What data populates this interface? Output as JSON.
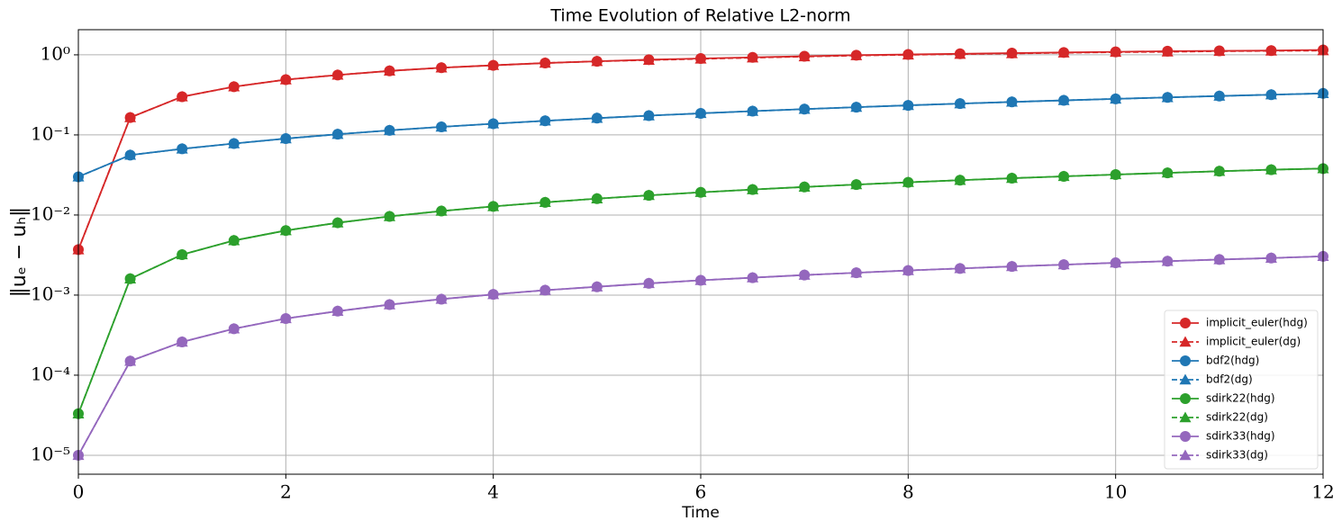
{
  "chart_data": {
    "type": "line",
    "title": "Time Evolution of Relative L2-norm",
    "xlabel": "Time",
    "ylabel": "‖uₑ − uₕ‖",
    "x": [
      0,
      0.5,
      1,
      1.5,
      2,
      2.5,
      3,
      3.5,
      4,
      4.5,
      5,
      5.5,
      6,
      6.5,
      7,
      7.5,
      8,
      8.5,
      9,
      9.5,
      10,
      10.5,
      11,
      11.5,
      12
    ],
    "series": [
      {
        "name": "implicit_euler(hdg)",
        "color": "#d62728",
        "linestyle": "solid",
        "marker": "circle",
        "values": [
          0.0037,
          0.165,
          0.3,
          0.4,
          0.49,
          0.56,
          0.63,
          0.69,
          0.74,
          0.79,
          0.83,
          0.87,
          0.9,
          0.93,
          0.96,
          0.99,
          1.01,
          1.03,
          1.05,
          1.07,
          1.09,
          1.11,
          1.12,
          1.13,
          1.15
        ]
      },
      {
        "name": "implicit_euler(dg)",
        "color": "#d62728",
        "linestyle": "dashed",
        "marker": "triangle",
        "values": [
          0.0037,
          0.165,
          0.3,
          0.4,
          0.49,
          0.56,
          0.63,
          0.69,
          0.74,
          0.79,
          0.83,
          0.86,
          0.89,
          0.92,
          0.95,
          0.98,
          1.0,
          1.02,
          1.04,
          1.06,
          1.08,
          1.09,
          1.11,
          1.12,
          1.13
        ]
      },
      {
        "name": "bdf2(hdg)",
        "color": "#1f77b4",
        "linestyle": "solid",
        "marker": "circle",
        "values": [
          0.03,
          0.056,
          0.067,
          0.078,
          0.09,
          0.102,
          0.114,
          0.126,
          0.138,
          0.15,
          0.162,
          0.174,
          0.186,
          0.198,
          0.21,
          0.222,
          0.234,
          0.246,
          0.258,
          0.27,
          0.282,
          0.294,
          0.306,
          0.318,
          0.33
        ]
      },
      {
        "name": "bdf2(dg)",
        "color": "#1f77b4",
        "linestyle": "dashed",
        "marker": "triangle",
        "values": [
          0.03,
          0.056,
          0.067,
          0.078,
          0.09,
          0.102,
          0.114,
          0.126,
          0.138,
          0.15,
          0.162,
          0.174,
          0.186,
          0.198,
          0.21,
          0.222,
          0.234,
          0.246,
          0.258,
          0.27,
          0.282,
          0.294,
          0.306,
          0.318,
          0.33
        ]
      },
      {
        "name": "sdirk22(hdg)",
        "color": "#2ca02c",
        "linestyle": "solid",
        "marker": "circle",
        "values": [
          3.3e-05,
          0.0016,
          0.0032,
          0.0048,
          0.0064,
          0.008,
          0.0096,
          0.0112,
          0.0128,
          0.0144,
          0.016,
          0.0176,
          0.0192,
          0.0208,
          0.0224,
          0.024,
          0.0256,
          0.0272,
          0.0288,
          0.0304,
          0.032,
          0.0336,
          0.0352,
          0.0368,
          0.038
        ]
      },
      {
        "name": "sdirk22(dg)",
        "color": "#2ca02c",
        "linestyle": "dashed",
        "marker": "triangle",
        "values": [
          3.3e-05,
          0.0016,
          0.0032,
          0.0048,
          0.0064,
          0.008,
          0.0096,
          0.0112,
          0.0128,
          0.0144,
          0.016,
          0.0176,
          0.0192,
          0.0208,
          0.0224,
          0.024,
          0.0256,
          0.0272,
          0.0288,
          0.0304,
          0.032,
          0.0336,
          0.0352,
          0.0368,
          0.038
        ]
      },
      {
        "name": "sdirk33(hdg)",
        "color": "#9467bd",
        "linestyle": "solid",
        "marker": "circle",
        "values": [
          1e-05,
          0.00015,
          0.00026,
          0.00038,
          0.00051,
          0.00063,
          0.00076,
          0.00089,
          0.00102,
          0.00115,
          0.00127,
          0.0014,
          0.00153,
          0.00165,
          0.00178,
          0.0019,
          0.00203,
          0.00215,
          0.00228,
          0.0024,
          0.00253,
          0.00265,
          0.00278,
          0.0029,
          0.00305
        ]
      },
      {
        "name": "sdirk33(dg)",
        "color": "#9467bd",
        "linestyle": "dashed",
        "marker": "triangle",
        "values": [
          1e-05,
          0.00015,
          0.00026,
          0.00038,
          0.00051,
          0.00063,
          0.00076,
          0.00089,
          0.00102,
          0.00115,
          0.00127,
          0.0014,
          0.00153,
          0.00165,
          0.00178,
          0.0019,
          0.00203,
          0.00215,
          0.00228,
          0.0024,
          0.00253,
          0.00265,
          0.00278,
          0.0029,
          0.00305
        ]
      }
    ],
    "xlim": [
      0,
      12
    ],
    "xticks": [
      0,
      2,
      4,
      6,
      8,
      10,
      12
    ],
    "ylim": [
      5.8e-06,
      2.06
    ],
    "yscale": "log",
    "yticks": [
      {
        "value": 1e-05,
        "label": "10⁻⁵"
      },
      {
        "value": 0.0001,
        "label": "10⁻⁴"
      },
      {
        "value": 0.001,
        "label": "10⁻³"
      },
      {
        "value": 0.01,
        "label": "10⁻²"
      },
      {
        "value": 0.1,
        "label": "10⁻¹"
      },
      {
        "value": 1,
        "label": "10⁰"
      }
    ],
    "grid": true,
    "legend": "lower right"
  }
}
